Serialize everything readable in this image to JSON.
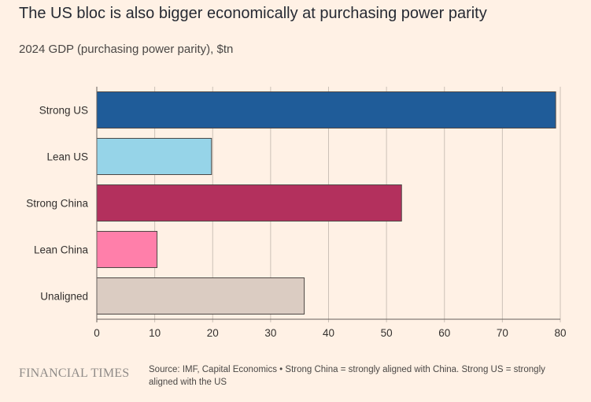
{
  "header": {
    "title": "The US bloc is also bigger economically at purchasing power parity",
    "subtitle": "2024 GDP (purchasing power parity), $tn"
  },
  "footer": {
    "logo_text": "FINANCIAL TIMES",
    "source": "Source: IMF, Capital Economics • Strong China = strongly aligned with China. Strong US = strongly aligned with the US"
  },
  "chart_data": {
    "type": "bar",
    "orientation": "horizontal",
    "title": "The US bloc is also bigger economically at purchasing power parity",
    "subtitle": "2024 GDP (purchasing power parity), $tn",
    "categories": [
      "Strong US",
      "Lean US",
      "Strong China",
      "Lean China",
      "Unaligned"
    ],
    "values": [
      79.2,
      19.8,
      52.6,
      10.4,
      35.8
    ],
    "colors": [
      "#1F5C99",
      "#96D4E8",
      "#B3305D",
      "#FF7FAA",
      "#DBCCC2"
    ],
    "xlim": [
      0,
      80
    ],
    "xticks": [
      0,
      10,
      20,
      30,
      40,
      50,
      60,
      70,
      80
    ],
    "grid": "vertical",
    "legend": "none"
  }
}
